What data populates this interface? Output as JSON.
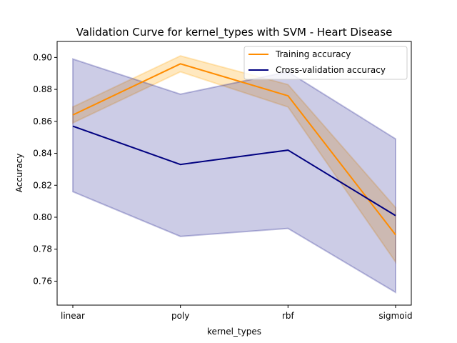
{
  "chart_data": {
    "type": "line",
    "title": "Validation Curve for kernel_types with SVM - Heart Disease",
    "xlabel": "kernel_types",
    "ylabel": "Accuracy",
    "categories": [
      "linear",
      "poly",
      "rbf",
      "sigmoid"
    ],
    "ylim": [
      0.745,
      0.91
    ],
    "yticks": [
      "0.76",
      "0.78",
      "0.80",
      "0.82",
      "0.84",
      "0.86",
      "0.88",
      "0.90"
    ],
    "grid": false,
    "legend_position": "top-right",
    "series": [
      {
        "name": "Training accuracy",
        "color": "#ff8c00",
        "values": [
          0.864,
          0.896,
          0.876,
          0.789
        ],
        "band_lower": [
          0.859,
          0.891,
          0.869,
          0.772
        ],
        "band_upper": [
          0.869,
          0.901,
          0.883,
          0.806
        ]
      },
      {
        "name": "Cross-validation accuracy",
        "color": "#000080",
        "values": [
          0.857,
          0.833,
          0.842,
          0.801
        ],
        "band_lower": [
          0.816,
          0.788,
          0.793,
          0.753
        ],
        "band_upper": [
          0.899,
          0.877,
          0.891,
          0.849
        ]
      }
    ]
  }
}
